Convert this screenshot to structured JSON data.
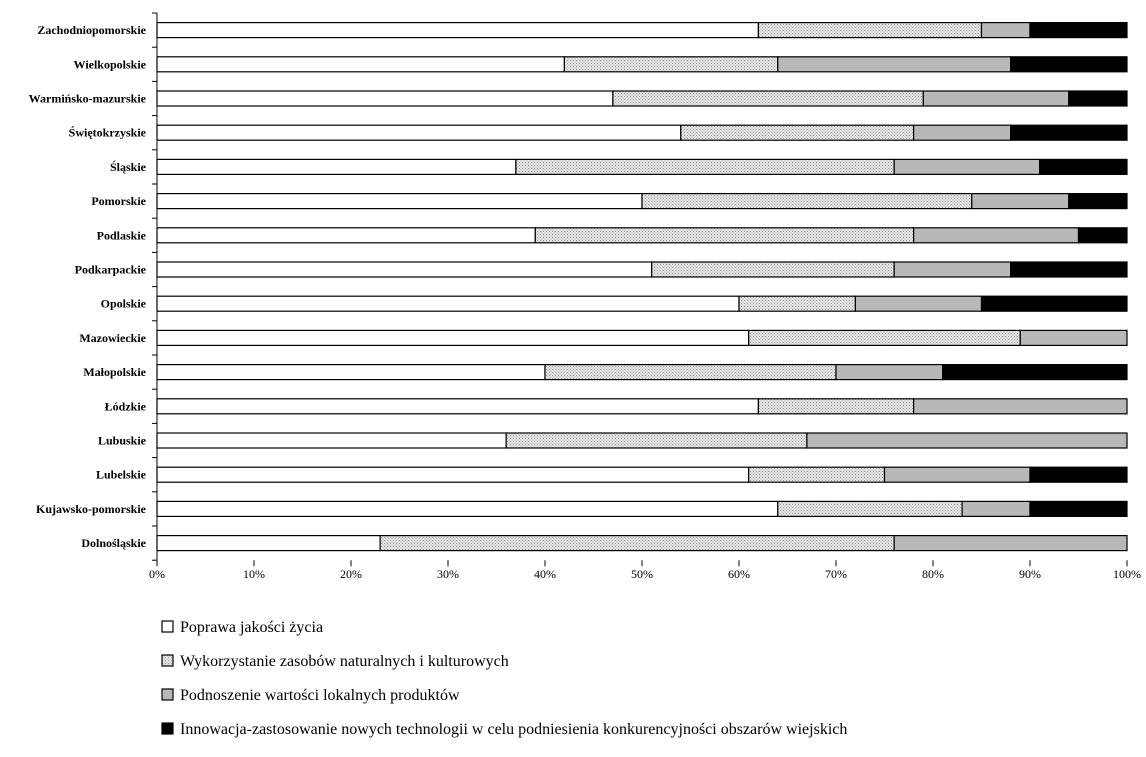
{
  "chart_data": {
    "type": "bar",
    "orientation": "horizontal",
    "stacked": "percent",
    "categories": [
      "Zachodniopomorskie",
      "Wielkopolskie",
      "Warmińsko-mazurskie",
      "Świętokrzyskie",
      "Śląskie",
      "Pomorskie",
      "Podlaskie",
      "Podkarpackie",
      "Opolskie",
      "Mazowieckie",
      "Małopolskie",
      "Łódzkie",
      "Lubuskie",
      "Lubelskie",
      "Kujawsko-pomorskie",
      "Dolnośląskie"
    ],
    "series": [
      {
        "name": "Poprawa jakości życia",
        "color": "#ffffff",
        "values": [
          62,
          42,
          47,
          54,
          37,
          50,
          39,
          51,
          60,
          61,
          40,
          62,
          36,
          61,
          64,
          23
        ]
      },
      {
        "name": "Wykorzystanie zasobów naturalnych i kulturowych",
        "color": "#d8d8d8",
        "values": [
          23,
          22,
          32,
          24,
          39,
          34,
          39,
          25,
          12,
          28,
          30,
          16,
          31,
          14,
          19,
          53
        ]
      },
      {
        "name": "Podnoszenie wartości lokalnych produktów",
        "color": "#b8b8b8",
        "values": [
          5,
          24,
          15,
          10,
          15,
          10,
          17,
          12,
          13,
          11,
          11,
          22,
          33,
          15,
          7,
          24
        ]
      },
      {
        "name": "Innowacja-zastosowanie nowych technologii w celu podniesienia konkurencyjności obszarów wiejskich",
        "color": "#000000",
        "values": [
          10,
          12,
          6,
          12,
          9,
          6,
          5,
          12,
          15,
          0,
          19,
          0,
          0,
          10,
          10,
          0
        ]
      }
    ],
    "xticks": [
      "0%",
      "10%",
      "20%",
      "30%",
      "40%",
      "50%",
      "60%",
      "70%",
      "80%",
      "90%",
      "100%"
    ],
    "xlim": [
      0,
      100
    ],
    "grid": false,
    "legend_position": "bottom",
    "title": "",
    "xlabel": "",
    "ylabel": ""
  }
}
